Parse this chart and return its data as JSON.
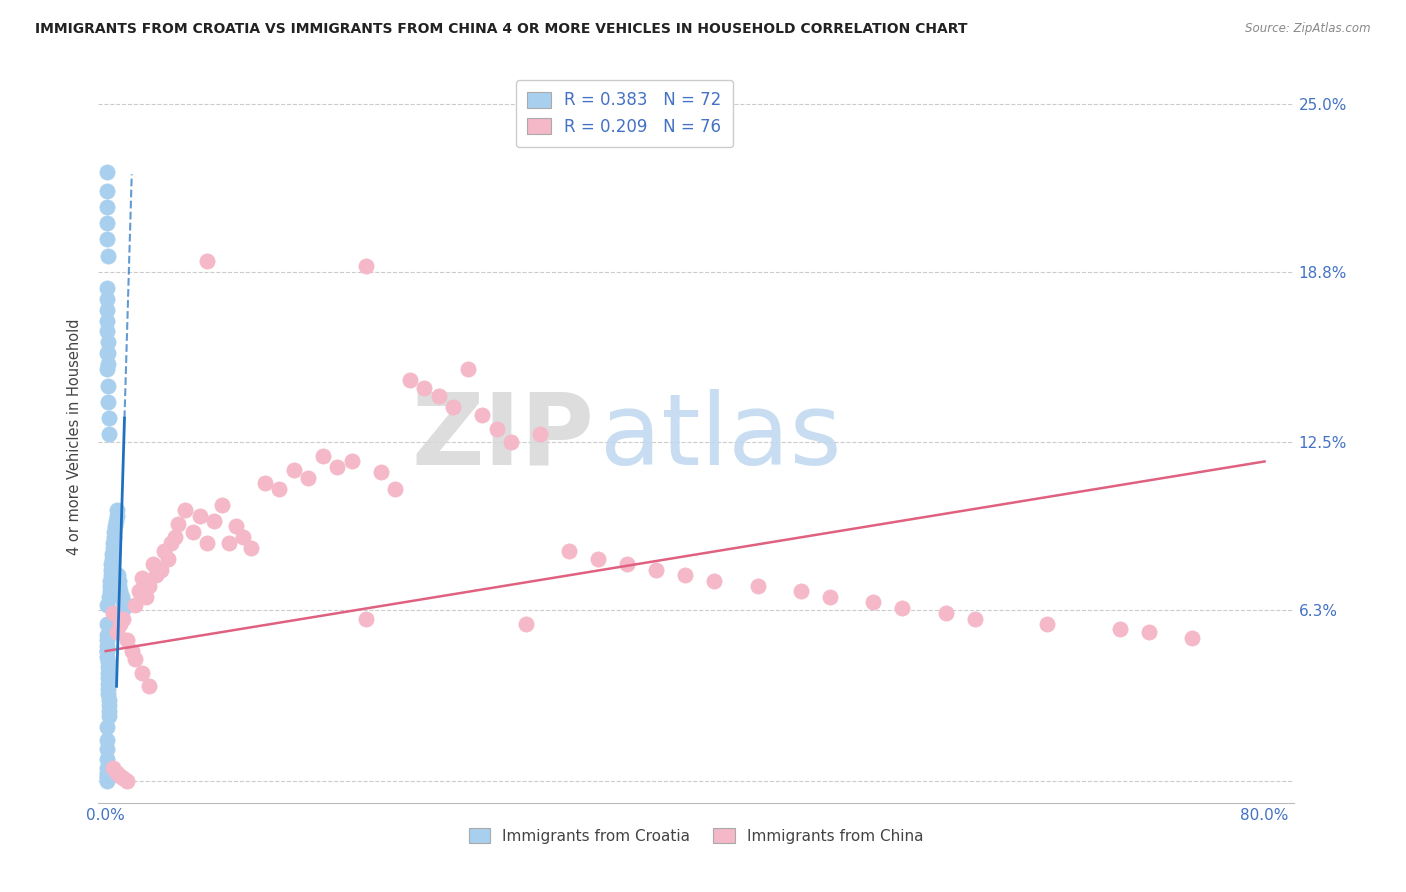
{
  "title": "IMMIGRANTS FROM CROATIA VS IMMIGRANTS FROM CHINA 4 OR MORE VEHICLES IN HOUSEHOLD CORRELATION CHART",
  "source": "Source: ZipAtlas.com",
  "ylabel": "4 or more Vehicles in Household",
  "croatia_R": 0.383,
  "croatia_N": 72,
  "china_R": 0.209,
  "china_N": 76,
  "croatia_color": "#a8d0ee",
  "china_color": "#f4b8c8",
  "croatia_line_color": "#2070c0",
  "china_line_color": "#e06080",
  "background_color": "#ffffff",
  "grid_color": "#cccccc",
  "ytick_color": "#4472c4",
  "xtick_color": "#4472c4",
  "right_ytick_labels": [
    "",
    "6.3%",
    "12.5%",
    "18.8%",
    "25.0%"
  ],
  "right_ytick_values": [
    0.0,
    0.063,
    0.125,
    0.188,
    0.25
  ],
  "xlim": [
    -0.005,
    0.82
  ],
  "ylim": [
    -0.008,
    0.262
  ],
  "watermark_zip_color": "#d0e4f0",
  "watermark_atlas_color": "#c8d8e8",
  "cro_x": [
    0.0008,
    0.0009,
    0.001,
    0.0011,
    0.0012,
    0.0013,
    0.0014,
    0.0015,
    0.0016,
    0.0017,
    0.0018,
    0.0019,
    0.002,
    0.0021,
    0.0022,
    0.0023,
    0.0025,
    0.0028,
    0.003,
    0.0032,
    0.0035,
    0.0038,
    0.004,
    0.0042,
    0.0045,
    0.0048,
    0.005,
    0.0055,
    0.006,
    0.0065,
    0.007,
    0.0075,
    0.008,
    0.0085,
    0.009,
    0.0095,
    0.01,
    0.011,
    0.012,
    0.013,
    0.001,
    0.0012,
    0.0015,
    0.0018,
    0.002,
    0.0025,
    0.0008,
    0.0009,
    0.001,
    0.0011,
    0.0012,
    0.0013,
    0.0014,
    0.0015,
    0.0008,
    0.0009,
    0.001,
    0.0011,
    0.0012,
    0.0013,
    0.0008,
    0.0009,
    0.001,
    0.0008,
    0.0009,
    0.001,
    0.0008,
    0.0009,
    0.0008,
    0.0008,
    0.0008,
    0.0008
  ],
  "cro_y": [
    0.065,
    0.058,
    0.052,
    0.048,
    0.046,
    0.044,
    0.042,
    0.04,
    0.038,
    0.036,
    0.034,
    0.032,
    0.03,
    0.028,
    0.026,
    0.024,
    0.068,
    0.07,
    0.072,
    0.074,
    0.076,
    0.078,
    0.08,
    0.082,
    0.084,
    0.086,
    0.088,
    0.09,
    0.092,
    0.094,
    0.096,
    0.098,
    0.1,
    0.076,
    0.074,
    0.072,
    0.07,
    0.068,
    0.066,
    0.064,
    0.158,
    0.152,
    0.146,
    0.14,
    0.134,
    0.128,
    0.182,
    0.178,
    0.174,
    0.17,
    0.166,
    0.162,
    0.158,
    0.154,
    0.225,
    0.218,
    0.212,
    0.206,
    0.2,
    0.194,
    0.054,
    0.05,
    0.048,
    0.02,
    0.015,
    0.012,
    0.008,
    0.005,
    0.003,
    0.002,
    0.001,
    0.0
  ],
  "chi_x": [
    0.005,
    0.008,
    0.01,
    0.012,
    0.015,
    0.018,
    0.02,
    0.023,
    0.025,
    0.028,
    0.03,
    0.033,
    0.035,
    0.038,
    0.04,
    0.043,
    0.045,
    0.048,
    0.05,
    0.055,
    0.06,
    0.065,
    0.07,
    0.075,
    0.08,
    0.085,
    0.09,
    0.095,
    0.1,
    0.11,
    0.12,
    0.13,
    0.14,
    0.15,
    0.16,
    0.17,
    0.18,
    0.19,
    0.2,
    0.21,
    0.22,
    0.23,
    0.24,
    0.25,
    0.26,
    0.27,
    0.28,
    0.3,
    0.32,
    0.34,
    0.36,
    0.38,
    0.4,
    0.42,
    0.45,
    0.48,
    0.5,
    0.53,
    0.55,
    0.58,
    0.6,
    0.65,
    0.7,
    0.72,
    0.75,
    0.07,
    0.18,
    0.29,
    0.005,
    0.008,
    0.01,
    0.012,
    0.015,
    0.02,
    0.025,
    0.03
  ],
  "chi_y": [
    0.062,
    0.055,
    0.058,
    0.06,
    0.052,
    0.048,
    0.065,
    0.07,
    0.075,
    0.068,
    0.072,
    0.08,
    0.076,
    0.078,
    0.085,
    0.082,
    0.088,
    0.09,
    0.095,
    0.1,
    0.092,
    0.098,
    0.192,
    0.096,
    0.102,
    0.088,
    0.094,
    0.09,
    0.086,
    0.11,
    0.108,
    0.115,
    0.112,
    0.12,
    0.116,
    0.118,
    0.19,
    0.114,
    0.108,
    0.148,
    0.145,
    0.142,
    0.138,
    0.152,
    0.135,
    0.13,
    0.125,
    0.128,
    0.085,
    0.082,
    0.08,
    0.078,
    0.076,
    0.074,
    0.072,
    0.07,
    0.068,
    0.066,
    0.064,
    0.062,
    0.06,
    0.058,
    0.056,
    0.055,
    0.053,
    0.088,
    0.06,
    0.058,
    0.005,
    0.003,
    0.002,
    0.001,
    0.0,
    0.045,
    0.04,
    0.035
  ]
}
